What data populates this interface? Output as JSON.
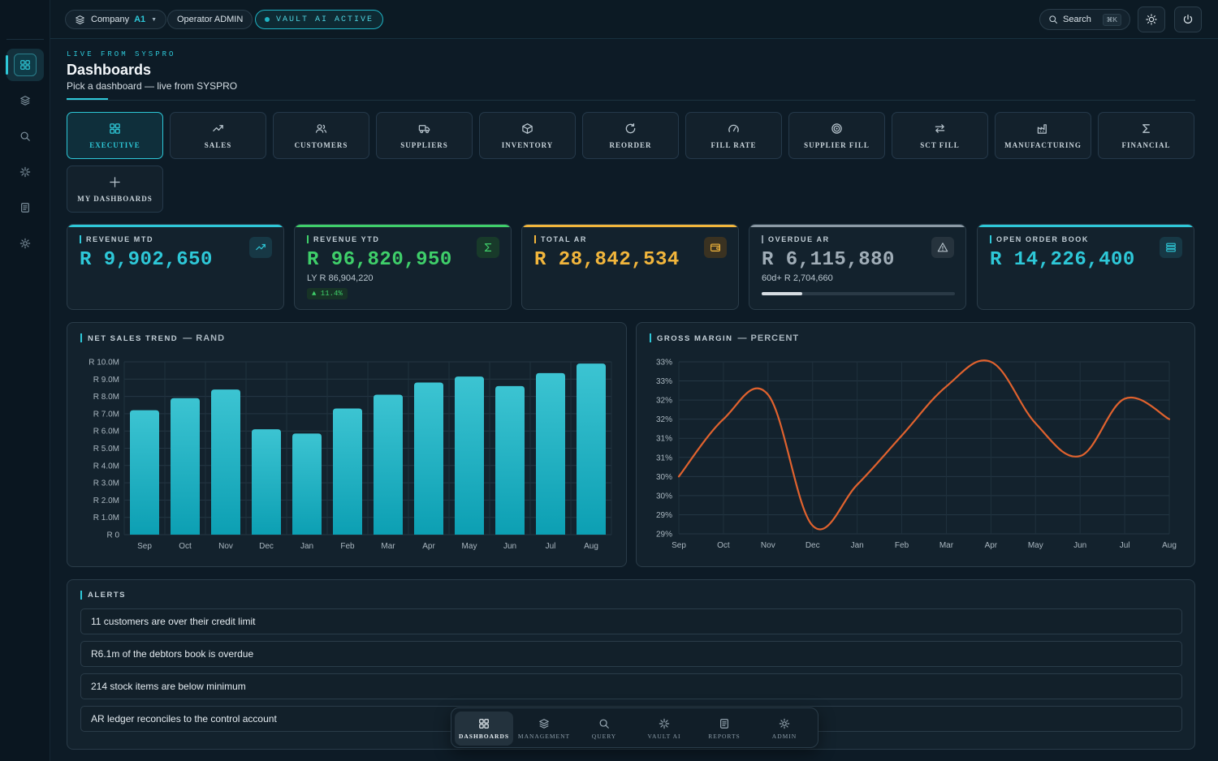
{
  "topbar": {
    "company_label": "Company",
    "company_value": "A1",
    "operator": "Operator ADMIN",
    "vault_status": "VAULT AI ACTIVE",
    "search_label": "Search",
    "search_shortcut": "⌘K"
  },
  "header": {
    "eyebrow": "LIVE FROM SYSPRO",
    "title": "Dashboards",
    "subtitle": "Pick a dashboard — live from SYSPRO"
  },
  "tiles": [
    {
      "label": "EXECUTIVE",
      "icon": "grid-icon"
    },
    {
      "label": "SALES",
      "icon": "trending-up-icon"
    },
    {
      "label": "CUSTOMERS",
      "icon": "users-icon"
    },
    {
      "label": "SUPPLIERS",
      "icon": "truck-icon"
    },
    {
      "label": "INVENTORY",
      "icon": "box-icon"
    },
    {
      "label": "REORDER",
      "icon": "refresh-icon"
    },
    {
      "label": "FILL RATE",
      "icon": "gauge-icon"
    },
    {
      "label": "SUPPLIER FILL",
      "icon": "target-icon"
    },
    {
      "label": "SCT FILL",
      "icon": "swap-icon"
    },
    {
      "label": "MANUFACTURING",
      "icon": "factory-icon"
    },
    {
      "label": "FINANCIAL",
      "icon": "sigma-icon"
    },
    {
      "label": "MY DASHBOARDS",
      "icon": "plus-icon"
    }
  ],
  "kpis": [
    {
      "label": "REVENUE MTD",
      "value": "R 9,902,650",
      "color": "#2ec8d8",
      "icon": "trending-up-icon"
    },
    {
      "label": "REVENUE YTD",
      "value": "R 96,820,950",
      "color": "#3fcf6a",
      "sub": "LY R 86,904,220",
      "badge": "▲ 11.4%",
      "icon": "sigma-icon"
    },
    {
      "label": "TOTAL AR",
      "value": "R 28,842,534",
      "color": "#f2b63c",
      "icon": "wallet-icon"
    },
    {
      "label": "OVERDUE AR",
      "value": "R 6,115,880",
      "color": "#8c9aa5",
      "sub": "60d+ R 2,704,660",
      "progress": 0.21,
      "icon": "warning-icon"
    },
    {
      "label": "OPEN ORDER BOOK",
      "value": "R 14,226,400",
      "color": "#2ec8d8",
      "icon": "stack-icon"
    }
  ],
  "net_sales": {
    "title": "NET SALES TREND",
    "unit": "— RAND"
  },
  "gross_margin": {
    "title": "GROSS MARGIN",
    "unit": "— PERCENT"
  },
  "chart_data": [
    {
      "type": "bar",
      "title": "NET SALES TREND — RAND",
      "categories": [
        "Sep",
        "Oct",
        "Nov",
        "Dec",
        "Jan",
        "Feb",
        "Mar",
        "Apr",
        "May",
        "Jun",
        "Jul",
        "Aug"
      ],
      "values": [
        7.2,
        7.9,
        8.4,
        6.1,
        5.85,
        7.3,
        8.1,
        8.8,
        9.15,
        8.6,
        9.35,
        9.9
      ],
      "unit": "R million",
      "ylim": [
        0,
        10
      ],
      "yticks": [
        "R 0",
        "R 1.0M",
        "R 2.0M",
        "R 3.0M",
        "R 4.0M",
        "R 5.0M",
        "R 6.0M",
        "R 7.0M",
        "R 8.0M",
        "R 9.0M",
        "R 10.0M"
      ],
      "grid": true,
      "color": "#19b6c8"
    },
    {
      "type": "line",
      "title": "GROSS MARGIN — PERCENT",
      "categories": [
        "Sep",
        "Oct",
        "Nov",
        "Dec",
        "Jan",
        "Feb",
        "Mar",
        "Apr",
        "May",
        "Jun",
        "Jul",
        "Aug"
      ],
      "values": [
        30.0,
        31.4,
        32.0,
        28.8,
        29.8,
        31.0,
        32.2,
        32.8,
        31.3,
        30.5,
        31.9,
        31.4
      ],
      "ylim": [
        28.6,
        32.8
      ],
      "yticks": [
        "29%",
        "29%",
        "30%",
        "30%",
        "31%",
        "31%",
        "32%",
        "32%",
        "33%",
        "33%"
      ],
      "grid": true,
      "color": "#e0622e"
    }
  ],
  "alerts": {
    "title": "ALERTS",
    "items": [
      "11 customers are over their credit limit",
      "R6.1m of the debtors book is overdue",
      "214 stock items are below minimum",
      "AR ledger reconciles to the control account"
    ]
  },
  "bottom_nav": [
    {
      "label": "DASHBOARDS",
      "icon": "grid-icon"
    },
    {
      "label": "MANAGEMENT",
      "icon": "layers-icon"
    },
    {
      "label": "QUERY",
      "icon": "search-icon"
    },
    {
      "label": "VAULT AI",
      "icon": "sparkle-icon"
    },
    {
      "label": "REPORTS",
      "icon": "document-icon"
    },
    {
      "label": "ADMIN",
      "icon": "gear-icon"
    }
  ]
}
